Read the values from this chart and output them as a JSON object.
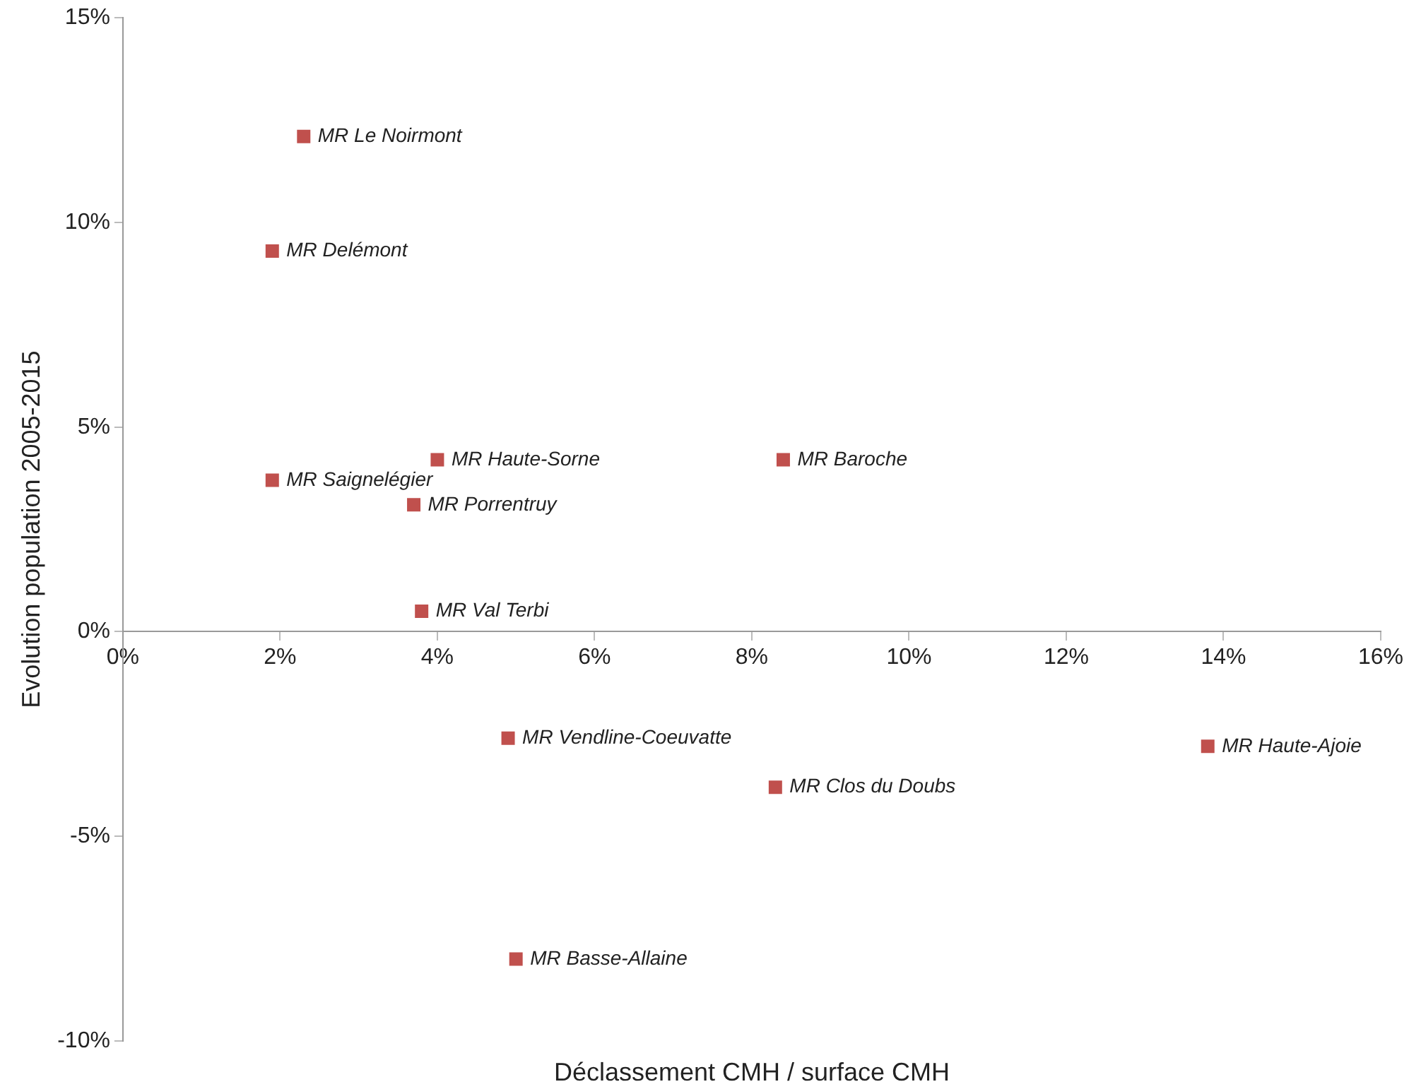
{
  "chart_data": {
    "type": "scatter",
    "xlabel": "Déclassement CMH / surface CMH",
    "ylabel": "Evolution population 2005-2015",
    "marker": "square",
    "grid": false,
    "legend": false,
    "xlim": [
      0,
      16
    ],
    "xticks": [
      {
        "value": 0,
        "label": "0%"
      },
      {
        "value": 2,
        "label": "2%"
      },
      {
        "value": 4,
        "label": "4%"
      },
      {
        "value": 6,
        "label": "6%"
      },
      {
        "value": 8,
        "label": "8%"
      },
      {
        "value": 10,
        "label": "10%"
      },
      {
        "value": 12,
        "label": "12%"
      },
      {
        "value": 14,
        "label": "14%"
      },
      {
        "value": 16,
        "label": "16%"
      }
    ],
    "ylim": [
      -10,
      15
    ],
    "yticks": [
      {
        "value": -10,
        "label": "-10%"
      },
      {
        "value": -5,
        "label": "-5%"
      },
      {
        "value": 0,
        "label": "0%"
      },
      {
        "value": 5,
        "label": "5%"
      },
      {
        "value": 10,
        "label": "10%"
      },
      {
        "value": 15,
        "label": "15%"
      }
    ],
    "series": [
      {
        "name": "MR Le Noirmont",
        "color": "#c0504d",
        "x": [
          2.3
        ],
        "values": [
          12.1
        ]
      },
      {
        "name": "MR Delémont",
        "color": "#c0504d",
        "x": [
          1.9
        ],
        "values": [
          9.3
        ]
      },
      {
        "name": "MR Saignelégier",
        "color": "#c0504d",
        "x": [
          1.9
        ],
        "values": [
          3.7
        ]
      },
      {
        "name": "MR Haute-Sorne",
        "color": "#c0504d",
        "x": [
          4.0
        ],
        "values": [
          4.2
        ]
      },
      {
        "name": "MR Porrentruy",
        "color": "#c0504d",
        "x": [
          3.7
        ],
        "values": [
          3.1
        ]
      },
      {
        "name": "MR Val Terbi",
        "color": "#c0504d",
        "x": [
          3.8
        ],
        "values": [
          0.5
        ]
      },
      {
        "name": "MR Baroche",
        "color": "#c0504d",
        "x": [
          8.4
        ],
        "values": [
          4.2
        ]
      },
      {
        "name": "MR Vendline-Coeuvatte",
        "color": "#c0504d",
        "x": [
          4.9
        ],
        "values": [
          -2.6
        ]
      },
      {
        "name": "MR Clos du Doubs",
        "color": "#c0504d",
        "x": [
          8.3
        ],
        "values": [
          -3.8
        ]
      },
      {
        "name": "MR Haute-Ajoie",
        "color": "#c0504d",
        "x": [
          13.8
        ],
        "values": [
          -2.8
        ]
      },
      {
        "name": "MR Basse-Allaine",
        "color": "#c0504d",
        "x": [
          5.0
        ],
        "values": [
          -8.0
        ]
      }
    ]
  }
}
